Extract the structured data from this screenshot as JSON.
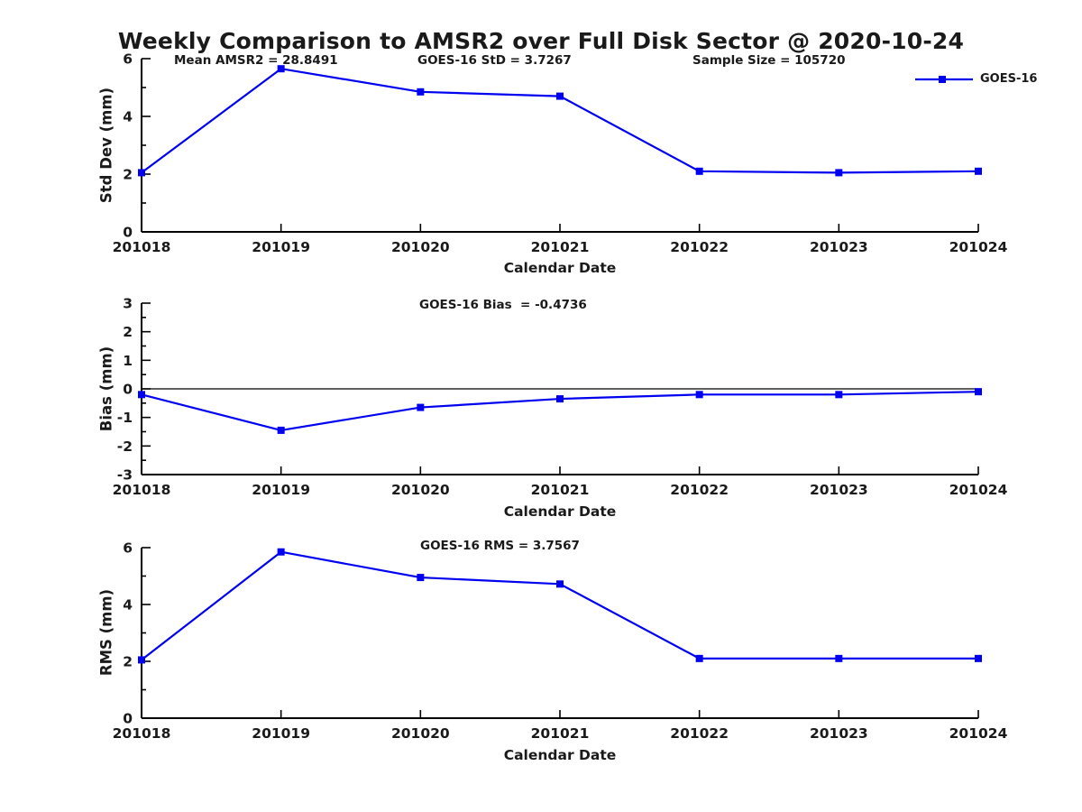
{
  "figure": {
    "title": "Weekly Comparison to AMSR2 over Full Disk Sector @ 2020-10-24",
    "background": "#ffffff"
  },
  "legend": {
    "label": "GOES-16",
    "marker": "square",
    "position": "upper right"
  },
  "colors": {
    "series": "#0000F0",
    "axis": "#000000",
    "text": "#1a1a1a",
    "zero_line": "#000000"
  },
  "x_axis": {
    "label": "Calendar Date",
    "categories": [
      "201018",
      "201019",
      "201020",
      "201021",
      "201022",
      "201023",
      "201024"
    ]
  },
  "chart_data": [
    {
      "type": "line",
      "name": "std_dev",
      "ylabel": "Std Dev (mm)",
      "xlabel": "Calendar Date",
      "ylim": [
        0,
        6
      ],
      "yticks": [
        0,
        2,
        4,
        6
      ],
      "minor_tick_step": 1,
      "zero_line": false,
      "grid": false,
      "annotations": [
        "Mean AMSR2 = 28.8491",
        "GOES-16 StD = 3.7267",
        "Sample Size = 105720"
      ],
      "categories": [
        "201018",
        "201019",
        "201020",
        "201021",
        "201022",
        "201023",
        "201024"
      ],
      "series": [
        {
          "name": "GOES-16",
          "values": [
            2.05,
            5.65,
            4.85,
            4.7,
            2.1,
            2.05,
            2.1
          ]
        }
      ]
    },
    {
      "type": "line",
      "name": "bias",
      "ylabel": "Bias (mm)",
      "xlabel": "Calendar Date",
      "ylim": [
        -3,
        3
      ],
      "yticks": [
        -3,
        -2,
        -1,
        0,
        1,
        2,
        3
      ],
      "minor_tick_step": 0.5,
      "zero_line": true,
      "grid": false,
      "annotations": [
        "GOES-16 Bias  = -0.4736"
      ],
      "categories": [
        "201018",
        "201019",
        "201020",
        "201021",
        "201022",
        "201023",
        "201024"
      ],
      "series": [
        {
          "name": "GOES-16",
          "values": [
            -0.2,
            -1.45,
            -0.65,
            -0.35,
            -0.2,
            -0.2,
            -0.1
          ]
        }
      ]
    },
    {
      "type": "line",
      "name": "rms",
      "ylabel": "RMS (mm)",
      "xlabel": "Calendar Date",
      "ylim": [
        0,
        6
      ],
      "yticks": [
        0,
        2,
        4,
        6
      ],
      "minor_tick_step": 1,
      "zero_line": false,
      "grid": false,
      "annotations": [
        "GOES-16 RMS = 3.7567"
      ],
      "categories": [
        "201018",
        "201019",
        "201020",
        "201021",
        "201022",
        "201023",
        "201024"
      ],
      "series": [
        {
          "name": "GOES-16",
          "values": [
            2.05,
            5.85,
            4.95,
            4.72,
            2.1,
            2.1,
            2.1
          ]
        }
      ]
    }
  ]
}
